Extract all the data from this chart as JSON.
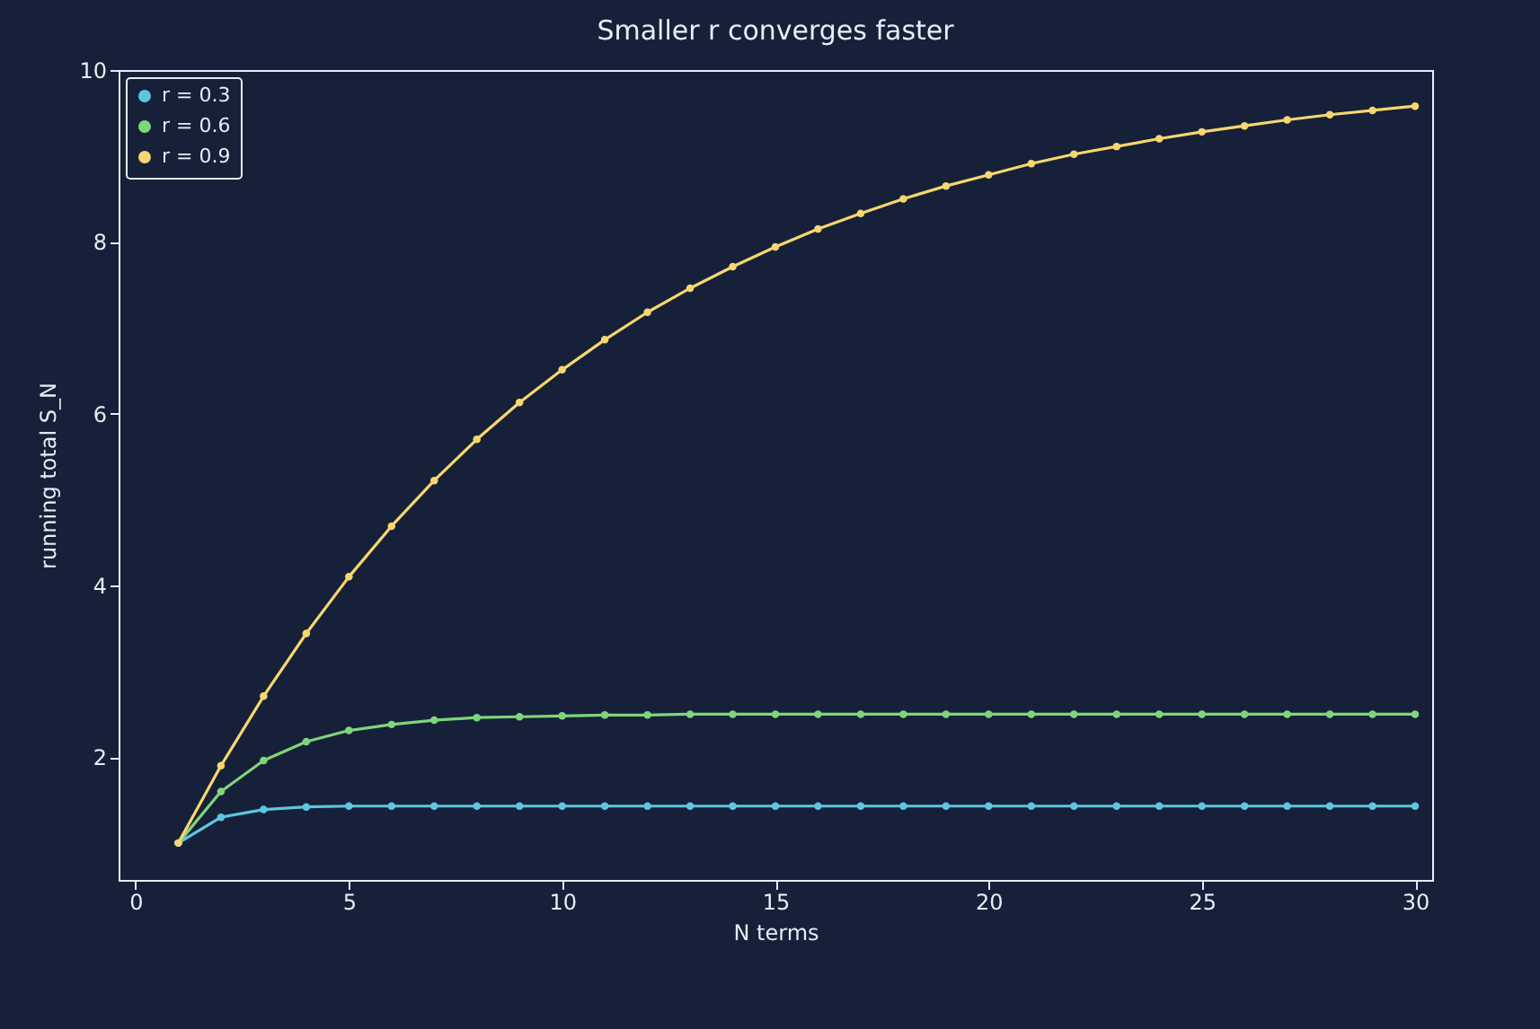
{
  "chart_data": {
    "type": "line",
    "title": "Smaller r converges faster",
    "xlabel": "N terms",
    "ylabel": "running total S_N",
    "x": [
      1,
      2,
      3,
      4,
      5,
      6,
      7,
      8,
      9,
      10,
      11,
      12,
      13,
      14,
      15,
      16,
      17,
      18,
      19,
      20,
      21,
      22,
      23,
      24,
      25,
      26,
      27,
      28,
      29,
      30
    ],
    "series": [
      {
        "name": "r = 0.3",
        "color": "#5bc8df",
        "values": [
          1,
          1.3,
          1.39,
          1.42,
          1.43,
          1.43,
          1.43,
          1.43,
          1.43,
          1.43,
          1.43,
          1.43,
          1.43,
          1.43,
          1.43,
          1.43,
          1.43,
          1.43,
          1.43,
          1.43,
          1.43,
          1.43,
          1.43,
          1.43,
          1.43,
          1.43,
          1.43,
          1.43,
          1.43,
          1.43
        ]
      },
      {
        "name": "r = 0.6",
        "color": "#7ed67a",
        "values": [
          1,
          1.6,
          1.96,
          2.18,
          2.31,
          2.38,
          2.43,
          2.46,
          2.47,
          2.48,
          2.49,
          2.49,
          2.5,
          2.5,
          2.5,
          2.5,
          2.5,
          2.5,
          2.5,
          2.5,
          2.5,
          2.5,
          2.5,
          2.5,
          2.5,
          2.5,
          2.5,
          2.5,
          2.5,
          2.5
        ]
      },
      {
        "name": "r = 0.9",
        "color": "#f5d76e",
        "values": [
          1,
          1.9,
          2.71,
          3.44,
          4.1,
          4.69,
          5.22,
          5.7,
          6.13,
          6.51,
          6.86,
          7.18,
          7.46,
          7.71,
          7.94,
          8.15,
          8.33,
          8.5,
          8.65,
          8.78,
          8.91,
          9.02,
          9.11,
          9.2,
          9.28,
          9.35,
          9.42,
          9.48,
          9.53,
          9.58
        ]
      }
    ],
    "xlim": [
      -0.4,
      30.4
    ],
    "xticks": [
      0,
      5,
      10,
      15,
      20,
      25,
      30
    ],
    "ylim": [
      0.57,
      10
    ],
    "yticks": [
      2,
      4,
      6,
      8,
      10
    ],
    "grid": false,
    "legend": "top left",
    "marker": "circle",
    "line_style": "solid"
  }
}
